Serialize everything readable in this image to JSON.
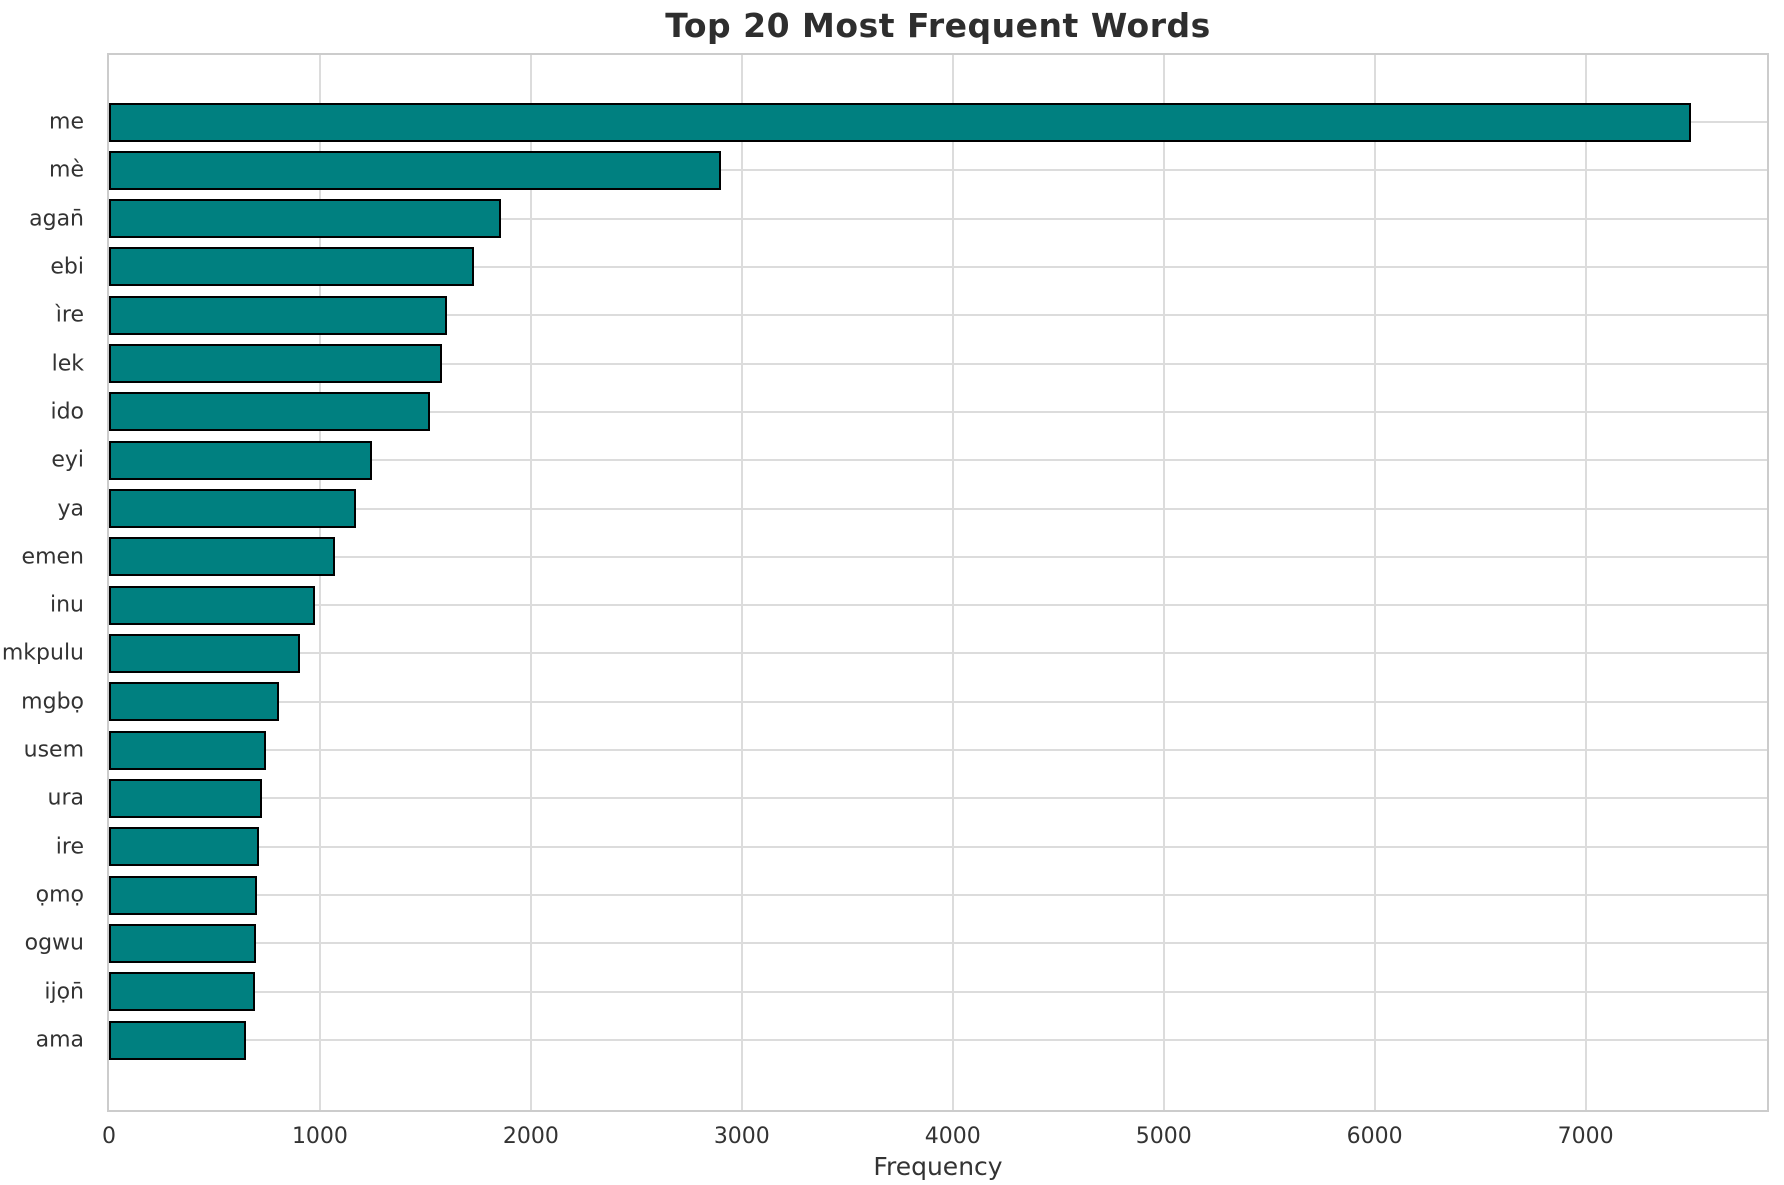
{
  "chart_data": {
    "type": "bar",
    "orientation": "horizontal",
    "title": "Top 20 Most Frequent Words",
    "xlabel": "Frequency",
    "ylabel": "",
    "categories": [
      "me",
      "mè",
      "agan̄",
      "ebi",
      "ìre",
      "lek",
      "ido",
      "eyi",
      "ya",
      "emen",
      "inu",
      "mkpulu",
      "mgbọ",
      "usem",
      "ura",
      "ire",
      "ọmọ",
      "ogwu",
      "ijọn̄",
      "ama"
    ],
    "values": [
      7500,
      2900,
      1860,
      1730,
      1600,
      1580,
      1520,
      1245,
      1170,
      1070,
      975,
      905,
      805,
      745,
      725,
      713,
      703,
      697,
      690,
      650
    ],
    "xticks": [
      0,
      1000,
      2000,
      3000,
      4000,
      5000,
      6000,
      7000
    ],
    "xlim": [
      0,
      7860
    ],
    "grid": true,
    "legend": false,
    "bar_color": "#008080",
    "bar_edge_color": "#000000",
    "grid_color": "#dcdcdc",
    "spine_color": "#cccccc",
    "text_color": "#333333"
  }
}
